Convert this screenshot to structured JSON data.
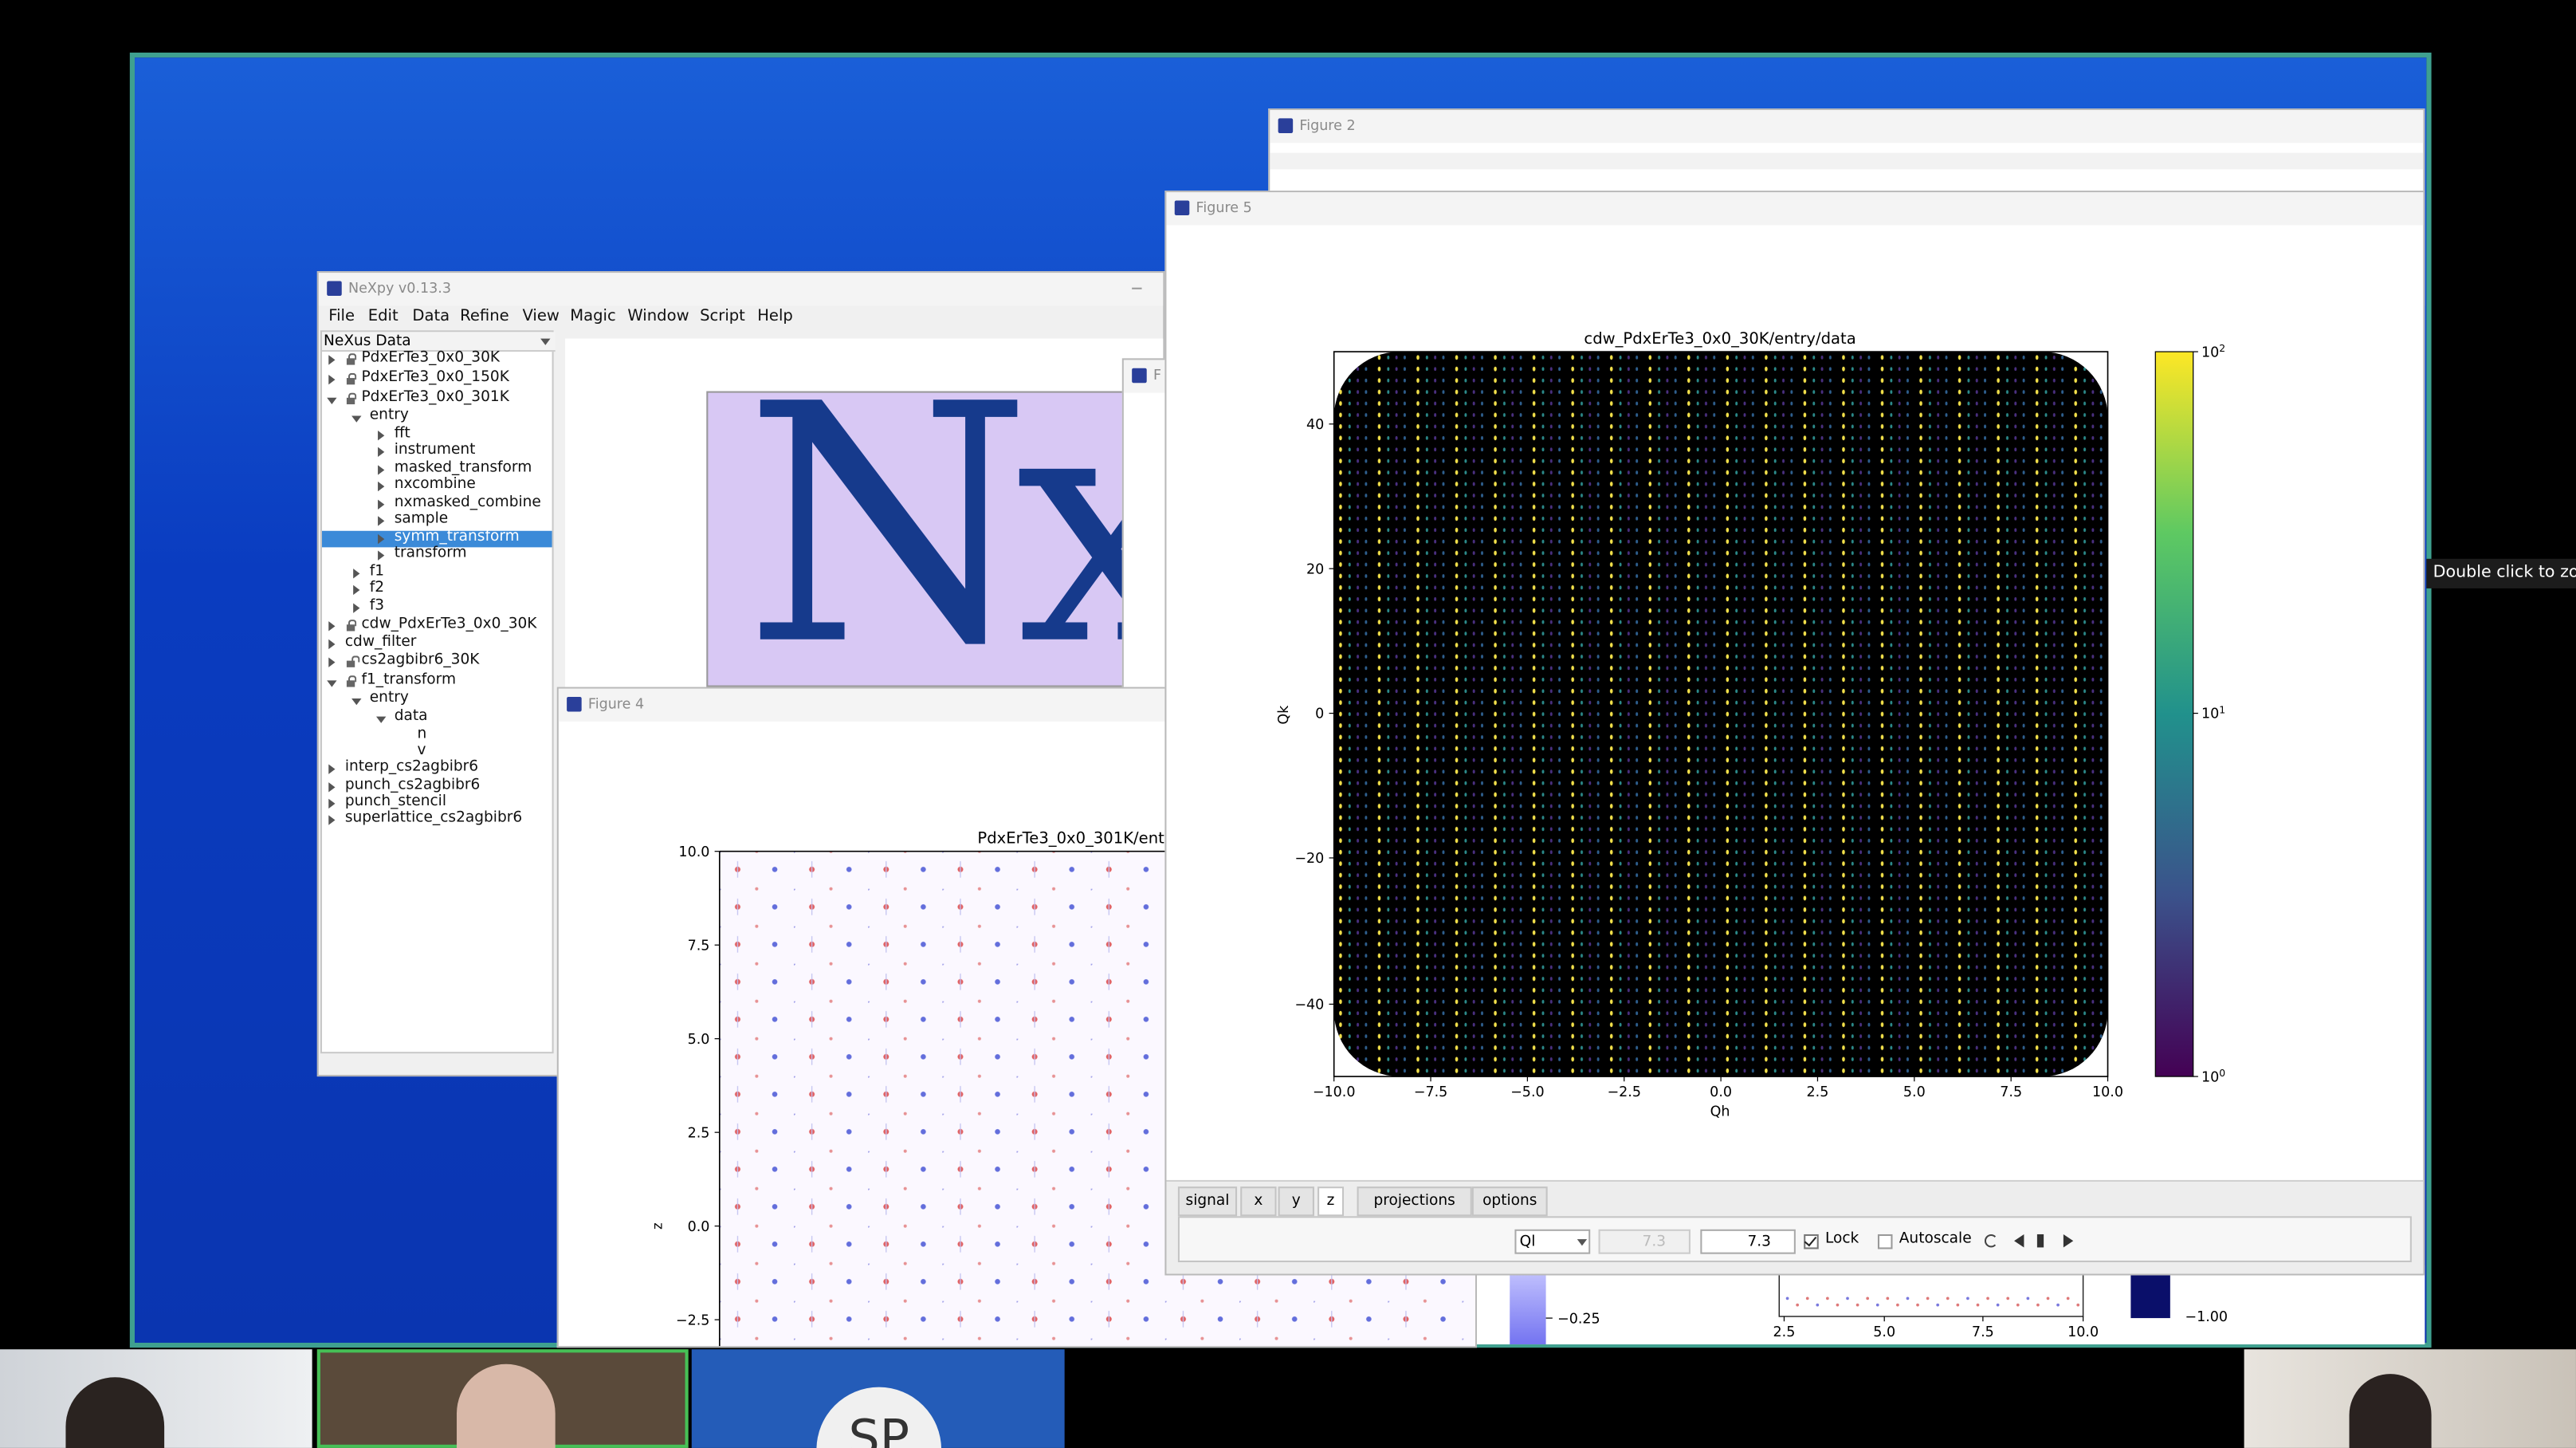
{
  "desktop": {
    "tooltip": "Double click to zo"
  },
  "nexpy": {
    "title": "NeXpy v0.13.3",
    "menu": [
      "File",
      "Edit",
      "Data",
      "Refine",
      "View",
      "Magic",
      "Window",
      "Script",
      "Help"
    ],
    "tree_header": "NeXus Data",
    "tree": [
      "PdxErTe3_0x0_30K",
      "PdxErTe3_0x0_150K",
      "PdxErTe3_0x0_301K",
      "entry",
      "fft",
      "instrument",
      "masked_transform",
      "nxcombine",
      "nxmasked_combine",
      "sample",
      "symm_transform",
      "transform",
      "f1",
      "f2",
      "f3",
      "cdw_PdxErTe3_0x0_30K",
      "cdw_filter",
      "cs2agbibr6_30K",
      "f1_transform",
      "entry",
      "data",
      "n",
      "v",
      "interp_cs2agbibr6",
      "punch_cs2agbibr6",
      "punch_stencil",
      "superlattice_cs2agbibr6"
    ],
    "logo": "Nx"
  },
  "hidden_window": {
    "title": "F"
  },
  "figure2": {
    "title": "Figure 2"
  },
  "figure5": {
    "title": "Figure 5",
    "plot_title": "cdw_PdxErTe3_0x0_30K/entry/data",
    "xlabel": "Qh",
    "ylabel": "Qk",
    "xticks": [
      "−10.0",
      "−7.5",
      "−5.0",
      "−2.5",
      "0.0",
      "2.5",
      "5.0",
      "7.5",
      "10.0"
    ],
    "yticks": [
      "40",
      "20",
      "0",
      "−20",
      "−40"
    ],
    "colorbar_ticks": [
      {
        "base": "10",
        "exp": "2"
      },
      {
        "base": "10",
        "exp": "1"
      },
      {
        "base": "10",
        "exp": "0"
      }
    ],
    "tabs": [
      "signal",
      "x",
      "y",
      "z",
      "projections",
      "options"
    ],
    "axis_select": "Ql",
    "min_value": "7.3",
    "max_value": "7.3",
    "lock": "Lock",
    "autoscale": "Autoscale"
  },
  "figure4": {
    "title": "Figure 4",
    "plot_title": "PdxErTe3_0x0_301K/ent",
    "ylabel": "z",
    "yticks": [
      "10.0",
      "7.5",
      "5.0",
      "2.5",
      "0.0",
      "−2.5"
    ]
  },
  "background_figure": {
    "colorbar1_tick": "−0.25",
    "xticks": [
      "2.5",
      "5.0",
      "7.5",
      "10.0"
    ],
    "colorbar2_tick": "−1.00"
  },
  "video": {
    "initials": "SP"
  }
}
